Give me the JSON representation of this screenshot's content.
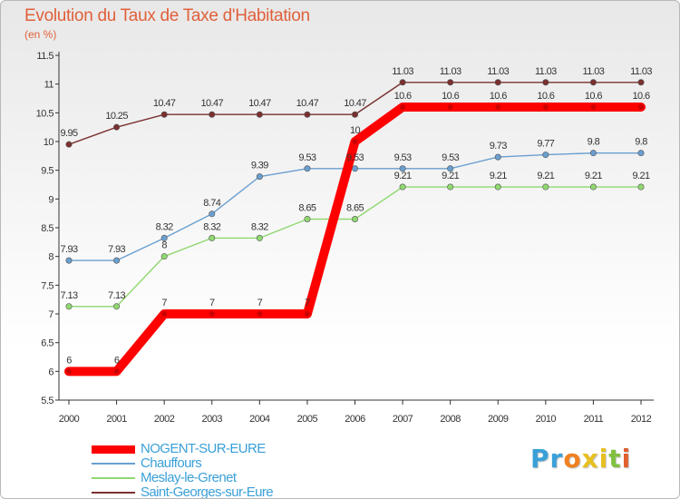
{
  "header": {
    "title": "Evolution du Taux de Taxe d'Habitation",
    "subtitle": "(en %)"
  },
  "logo": {
    "text": "Proxiti",
    "letter_colors": [
      "#3aa0d8",
      "#3aa0d8",
      "#f08020",
      "#e8c020",
      "#e8c020",
      "#80c040",
      "#e06030"
    ]
  },
  "chart_data": {
    "type": "line",
    "title": "Evolution du Taux de Taxe d'Habitation",
    "subtitle": "(en %)",
    "xlabel": "",
    "ylabel": "",
    "x": [
      2000,
      2001,
      2002,
      2003,
      2004,
      2005,
      2006,
      2007,
      2008,
      2009,
      2010,
      2011,
      2012
    ],
    "ylim": [
      5.5,
      11.5
    ],
    "yticks": [
      5.5,
      6,
      6.5,
      7,
      7.5,
      8,
      8.5,
      9,
      9.5,
      10,
      10.5,
      11,
      11.5
    ],
    "ytick_labels": [
      "5.5",
      "6",
      "6.5",
      "7",
      "7.5",
      "8",
      "8.5",
      "9",
      "9.5",
      "10",
      "10.5",
      "11",
      "11.5"
    ],
    "grid": false,
    "legend_position": "bottom-left",
    "series": [
      {
        "name": "NOGENT-SUR-EURE",
        "color": "#ff0000",
        "values": [
          6,
          6,
          7,
          7,
          7,
          7,
          10,
          10.6,
          10.6,
          10.6,
          10.6,
          10.6,
          10.6
        ],
        "labels": [
          "6",
          "6",
          "7",
          "7",
          "7",
          "7",
          "10",
          "10.6",
          "10.6",
          "10.6",
          "10.6",
          "10.6",
          "10.6"
        ]
      },
      {
        "name": "Chauffours",
        "color": "#6a9fd0",
        "values": [
          7.93,
          7.93,
          8.32,
          8.74,
          9.39,
          9.53,
          9.53,
          9.53,
          9.53,
          9.73,
          9.77,
          9.8,
          9.8
        ],
        "labels": [
          "7.93",
          "7.93",
          "8.32",
          "8.74",
          "9.39",
          "9.53",
          "9.53",
          "9.53",
          "9.53",
          "9.73",
          "9.77",
          "9.8",
          "9.8"
        ]
      },
      {
        "name": "Meslay-le-Grenet",
        "color": "#90d870",
        "values": [
          7.13,
          7.13,
          8,
          8.32,
          8.32,
          8.65,
          8.65,
          9.21,
          9.21,
          9.21,
          9.21,
          9.21,
          9.21
        ],
        "labels": [
          "7.13",
          "7.13",
          "8",
          "8.32",
          "8.32",
          "8.65",
          "8.65",
          "9.21",
          "9.21",
          "9.21",
          "9.21",
          "9.21",
          "9.21"
        ]
      },
      {
        "name": "Saint-Georges-sur-Eure",
        "color": "#7a3030",
        "values": [
          9.95,
          10.25,
          10.47,
          10.47,
          10.47,
          10.47,
          10.47,
          11.03,
          11.03,
          11.03,
          11.03,
          11.03,
          11.03
        ],
        "labels": [
          "9.95",
          "10.25",
          "10.47",
          "10.47",
          "10.47",
          "10.47",
          "10.47",
          "11.03",
          "11.03",
          "11.03",
          "11.03",
          "11.03",
          "11.03"
        ]
      }
    ]
  }
}
